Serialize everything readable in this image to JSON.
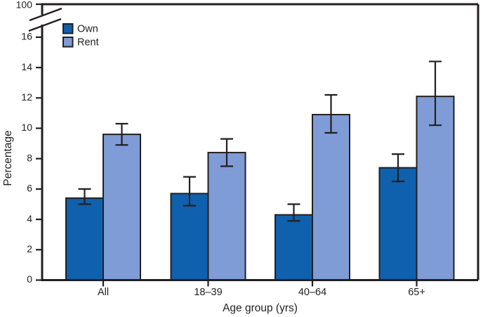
{
  "chart_data": {
    "type": "bar",
    "title": "",
    "categories": [
      "All",
      "18–39",
      "40–64",
      "65+"
    ],
    "series": [
      {
        "name": "Own",
        "color": "#0f61ae",
        "values": [
          5.4,
          5.7,
          4.3,
          7.4
        ],
        "ci_low": [
          5.0,
          4.9,
          3.9,
          6.5
        ],
        "ci_high": [
          6.0,
          6.8,
          5.0,
          8.3
        ]
      },
      {
        "name": "Rent",
        "color": "#7f9cd6",
        "values": [
          9.6,
          8.4,
          10.9,
          12.1
        ],
        "ci_low": [
          8.9,
          7.5,
          9.7,
          10.2
        ],
        "ci_high": [
          10.3,
          9.3,
          12.2,
          14.4
        ]
      }
    ],
    "xlabel": "Age group (yrs)",
    "ylabel": "Percentage",
    "yticks": [
      0,
      2,
      4,
      6,
      8,
      10,
      12,
      14,
      16
    ],
    "axis_break_top_label": "100",
    "ylim": [
      0,
      16
    ],
    "grid": false,
    "legend_position": "top-left-inside",
    "axis_color": "#231f20",
    "error_bars": true
  }
}
